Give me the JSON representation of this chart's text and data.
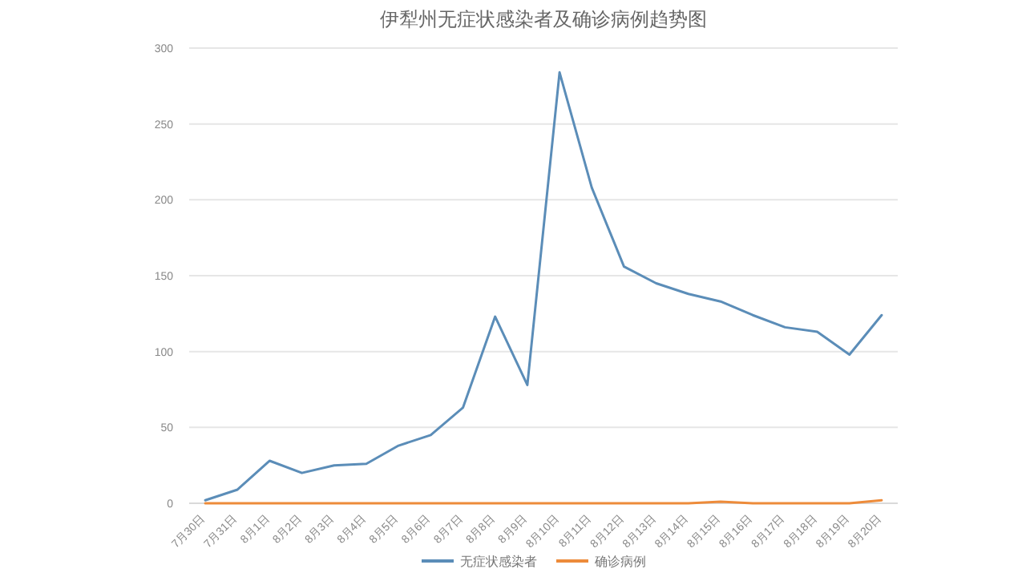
{
  "chart_data": {
    "type": "line",
    "title": "伊犁州无症状感染者及确诊病例趋势图",
    "categories": [
      "7月30日",
      "7月31日",
      "8月1日",
      "8月2日",
      "8月3日",
      "8月4日",
      "8月5日",
      "8月6日",
      "8月7日",
      "8月8日",
      "8月9日",
      "8月10日",
      "8月11日",
      "8月12日",
      "8月13日",
      "8月14日",
      "8月15日",
      "8月16日",
      "8月17日",
      "8月18日",
      "8月19日",
      "8月20日"
    ],
    "series": [
      {
        "name": "无症状感染者",
        "color": "#5b8db8",
        "values": [
          2,
          9,
          28,
          20,
          25,
          26,
          38,
          45,
          63,
          123,
          78,
          284,
          208,
          156,
          145,
          138,
          133,
          124,
          116,
          113,
          98,
          124
        ]
      },
      {
        "name": "确诊病例",
        "color": "#ed8b3a",
        "values": [
          0,
          0,
          0,
          0,
          0,
          0,
          0,
          0,
          0,
          0,
          0,
          0,
          0,
          0,
          0,
          0,
          1,
          0,
          0,
          0,
          0,
          2
        ]
      }
    ],
    "ylim": [
      0,
      300
    ],
    "yticks": [
      0,
      50,
      100,
      150,
      200,
      250,
      300
    ],
    "grid": "y",
    "legend": "bottom",
    "marker": "none",
    "line_style": "solid"
  }
}
